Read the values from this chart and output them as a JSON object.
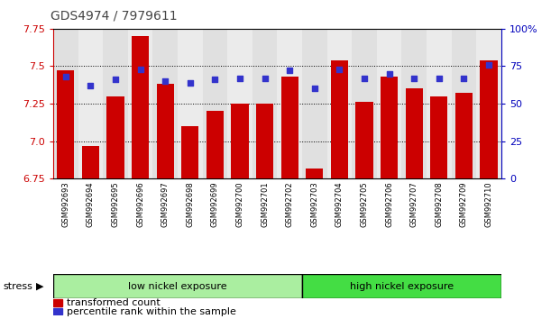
{
  "title": "GDS4974 / 7979611",
  "samples": [
    "GSM992693",
    "GSM992694",
    "GSM992695",
    "GSM992696",
    "GSM992697",
    "GSM992698",
    "GSM992699",
    "GSM992700",
    "GSM992701",
    "GSM992702",
    "GSM992703",
    "GSM992704",
    "GSM992705",
    "GSM992706",
    "GSM992707",
    "GSM992708",
    "GSM992709",
    "GSM992710"
  ],
  "transformed_count": [
    7.47,
    6.97,
    7.3,
    7.7,
    7.38,
    7.1,
    7.2,
    7.25,
    7.25,
    7.43,
    6.82,
    7.54,
    7.26,
    7.43,
    7.35,
    7.3,
    7.32,
    7.54
  ],
  "percentile_rank": [
    68,
    62,
    66,
    73,
    65,
    64,
    66,
    67,
    67,
    72,
    60,
    73,
    67,
    70,
    67,
    67,
    67,
    76
  ],
  "ylim_left": [
    6.75,
    7.75
  ],
  "ylim_right": [
    0,
    100
  ],
  "yticks_left": [
    6.75,
    7.0,
    7.25,
    7.5,
    7.75
  ],
  "yticks_right": [
    0,
    25,
    50,
    75,
    100
  ],
  "bar_color": "#cc0000",
  "dot_color": "#3333cc",
  "bar_bottom": 6.75,
  "group1_label": "low nickel exposure",
  "group2_label": "high nickel exposure",
  "group1_count": 10,
  "group2_count": 8,
  "group1_color": "#aaeea0",
  "group2_color": "#44dd44",
  "stress_label": "stress",
  "legend_bar": "transformed count",
  "legend_dot": "percentile rank within the sample",
  "right_axis_color": "#0000bb",
  "left_axis_color": "#cc0000",
  "col_bg_even": "#e0e0e0",
  "col_bg_odd": "#ebebeb"
}
